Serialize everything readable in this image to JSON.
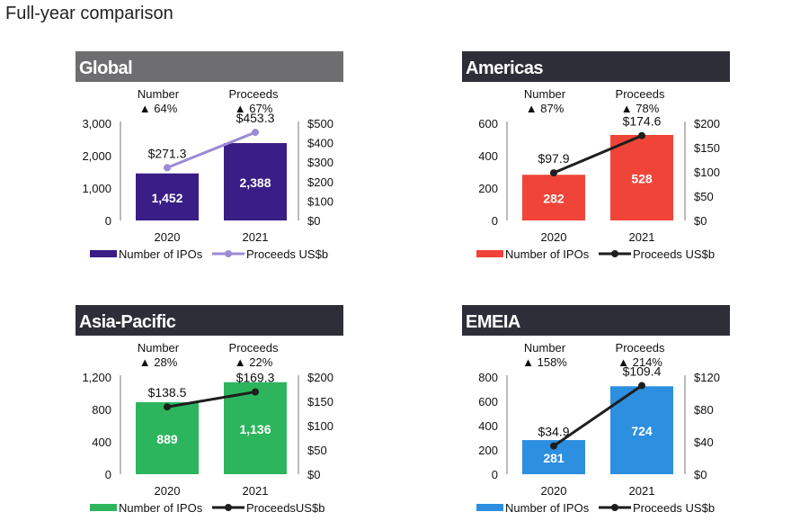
{
  "page_title": "Full-year comparison",
  "chart_data": [
    {
      "type": "bar+line",
      "title": "Global",
      "header_color": "#6e6e70",
      "bar_color": "#3a1d86",
      "line_color": "#9b8ad6",
      "categories": [
        "2020",
        "2021"
      ],
      "series": [
        {
          "name": "Number of IPOs",
          "kind": "bar",
          "axis": "left",
          "values": [
            1452,
            2388
          ],
          "labels": [
            "1,452",
            "2,388"
          ]
        },
        {
          "name": "Proceeds US$b",
          "kind": "line",
          "axis": "right",
          "values": [
            271.3,
            453.3
          ],
          "labels": [
            "$271.3",
            "$453.3"
          ]
        }
      ],
      "left_axis": {
        "range": [
          0,
          3000
        ],
        "ticks": [
          "0",
          "1,000",
          "2,000",
          "3,000"
        ]
      },
      "right_axis": {
        "range": [
          0,
          500
        ],
        "ticks": [
          "$0",
          "$100",
          "$200",
          "$300",
          "$400",
          "$500"
        ]
      },
      "change": {
        "number_label": "Number",
        "number_change": "64%",
        "proceeds_label": "Proceeds",
        "proceeds_change": "67%",
        "arrow": "▲"
      },
      "legend": [
        "Number of IPOs",
        "Proceeds US$b"
      ]
    },
    {
      "type": "bar+line",
      "title": "Americas",
      "header_color": "#2e2e38",
      "bar_color": "#f04438",
      "line_color": "#1e1e1e",
      "categories": [
        "2020",
        "2021"
      ],
      "series": [
        {
          "name": "Number of IPOs",
          "kind": "bar",
          "axis": "left",
          "values": [
            282,
            528
          ],
          "labels": [
            "282",
            "528"
          ]
        },
        {
          "name": "Proceeds US$b",
          "kind": "line",
          "axis": "right",
          "values": [
            97.9,
            174.6
          ],
          "labels": [
            "$97.9",
            "$174.6"
          ]
        }
      ],
      "left_axis": {
        "range": [
          0,
          600
        ],
        "ticks": [
          "0",
          "200",
          "400",
          "600"
        ]
      },
      "right_axis": {
        "range": [
          0,
          200
        ],
        "ticks": [
          "$0",
          "$50",
          "$100",
          "$150",
          "$200"
        ]
      },
      "change": {
        "number_label": "Number",
        "number_change": "87%",
        "proceeds_label": "Proceeds",
        "proceeds_change": "78%",
        "arrow": "▲"
      },
      "legend": [
        "Number of IPOs",
        "Proceeds US$b"
      ]
    },
    {
      "type": "bar+line",
      "title": "Asia-Pacific",
      "header_color": "#2e2e38",
      "bar_color": "#2db55d",
      "line_color": "#1e1e1e",
      "categories": [
        "2020",
        "2021"
      ],
      "series": [
        {
          "name": "Number of IPOs",
          "kind": "bar",
          "axis": "left",
          "values": [
            889,
            1136
          ],
          "labels": [
            "889",
            "1,136"
          ]
        },
        {
          "name": "Proceeds US$b",
          "kind": "line",
          "axis": "right",
          "values": [
            138.5,
            169.3
          ],
          "labels": [
            "$138.5",
            "$169.3"
          ]
        }
      ],
      "left_axis": {
        "range": [
          0,
          1200
        ],
        "ticks": [
          "0",
          "400",
          "800",
          "1,200"
        ]
      },
      "right_axis": {
        "range": [
          0,
          200
        ],
        "ticks": [
          "$0",
          "$50",
          "$100",
          "$150",
          "$200"
        ]
      },
      "change": {
        "number_label": "Number",
        "number_change": "28%",
        "proceeds_label": "Proceeds",
        "proceeds_change": "22%",
        "arrow": "▲"
      },
      "legend": [
        "Number of IPOs",
        "ProceedsUS$b"
      ]
    },
    {
      "type": "bar+line",
      "title": "EMEIA",
      "header_color": "#2e2e38",
      "bar_color": "#2d8fe0",
      "line_color": "#1e1e1e",
      "categories": [
        "2020",
        "2021"
      ],
      "series": [
        {
          "name": "Number of IPOs",
          "kind": "bar",
          "axis": "left",
          "values": [
            281,
            724
          ],
          "labels": [
            "281",
            "724"
          ]
        },
        {
          "name": "Proceeds US$b",
          "kind": "line",
          "axis": "right",
          "values": [
            34.9,
            109.4
          ],
          "labels": [
            "$34.9",
            "$109.4"
          ]
        }
      ],
      "left_axis": {
        "range": [
          0,
          800
        ],
        "ticks": [
          "0",
          "200",
          "400",
          "600",
          "800"
        ]
      },
      "right_axis": {
        "range": [
          0,
          120
        ],
        "ticks": [
          "$0",
          "$40",
          "$80",
          "$120"
        ]
      },
      "change": {
        "number_label": "Number",
        "number_change": "158%",
        "proceeds_label": "Proceeds",
        "proceeds_change": "214%",
        "arrow": "▲"
      },
      "legend": [
        "Number of IPOs",
        "Proceeds US$b"
      ]
    }
  ]
}
